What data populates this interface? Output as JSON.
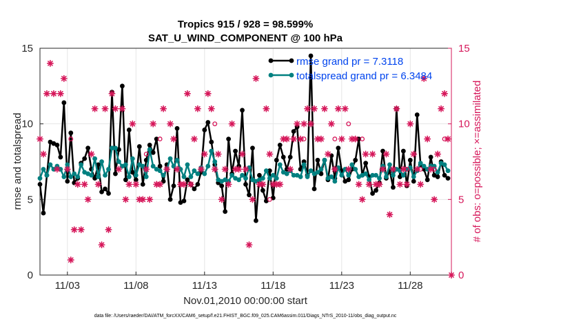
{
  "chart_data": {
    "type": "line",
    "title": "Tropics 915 / 928 = 98.599%",
    "subtitle": "SAT_U_WIND_COMPONENT @ 100 hPa",
    "xlabel": "Nov.01,2010 00:00:00 start",
    "ylabel": "rmse and totalspread",
    "ylabel_right": "# of obs: o=possible; ×=assimilated",
    "footer": "data file: /Users/raeder/DAI/ATM_forcXX/CAM6_setup/f.e21.FHIST_BGC.f09_025.CAM6assim.011/Diags_NTrS_2010-11/obs_diag_output.nc",
    "xlim": [
      1,
      31
    ],
    "ylim": [
      0,
      15
    ],
    "ylim_right": [
      0,
      15
    ],
    "grid": true,
    "x_ticks": [
      3,
      8,
      13,
      18,
      23,
      28
    ],
    "x_tick_labels": [
      "11/03",
      "11/08",
      "11/13",
      "11/18",
      "11/23",
      "11/28"
    ],
    "y_ticks": [
      0,
      5,
      10,
      15
    ],
    "y_tick_labels": [
      "0",
      "5",
      "10",
      "15"
    ],
    "y_ticks_right": [
      0,
      5,
      10,
      15
    ],
    "y_tick_labels_right": [
      "0",
      "5",
      "10",
      "15"
    ],
    "legend_position": "top-right",
    "colors": {
      "rmse": "#000000",
      "spread": "#008080",
      "obs": "#d6175a",
      "legend_text": "#0044ee",
      "right_axis": "#d6175a"
    },
    "series": [
      {
        "name": "rmse grand pr = 7.3118",
        "x": [
          1.0,
          1.25,
          1.5,
          1.75,
          2.0,
          2.25,
          2.5,
          2.75,
          3.0,
          3.25,
          3.5,
          3.75,
          4.0,
          4.25,
          4.5,
          4.75,
          5.0,
          5.25,
          5.5,
          5.75,
          6.0,
          6.25,
          6.5,
          6.75,
          7.0,
          7.25,
          7.5,
          7.75,
          8.0,
          8.25,
          8.5,
          8.75,
          9.0,
          9.25,
          9.5,
          9.75,
          10.0,
          10.25,
          10.5,
          10.75,
          11.0,
          11.25,
          11.5,
          11.75,
          12.0,
          12.25,
          12.5,
          12.75,
          13.0,
          13.25,
          13.5,
          13.75,
          14.0,
          14.25,
          14.5,
          14.75,
          15.0,
          15.25,
          15.5,
          15.75,
          16.0,
          16.25,
          16.5,
          16.75,
          17.0,
          17.25,
          17.5,
          17.75,
          18.0,
          18.25,
          18.5,
          18.75,
          19.0,
          19.25,
          19.5,
          19.75,
          20.0,
          20.25,
          20.5,
          20.75,
          21.0,
          21.25,
          21.5,
          21.75,
          22.0,
          22.25,
          22.5,
          22.75,
          23.0,
          23.25,
          23.5,
          23.75,
          24.0,
          24.25,
          24.5,
          24.75,
          25.0,
          25.25,
          25.5,
          25.75,
          26.0,
          26.25,
          26.5,
          26.75,
          27.0,
          27.25,
          27.5,
          27.75,
          28.0,
          28.25,
          28.5,
          28.75,
          29.0,
          29.25,
          29.5,
          29.75,
          30.0,
          30.25,
          30.5,
          30.75
        ],
        "values": [
          6.0,
          4.1,
          6.6,
          8.8,
          8.7,
          8.6,
          7.8,
          11.4,
          6.2,
          9.4,
          6.1,
          6.4,
          7.4,
          7.7,
          8.4,
          7.0,
          6.4,
          7.3,
          5.5,
          5.7,
          5.4,
          12.1,
          6.7,
          8.3,
          12.5,
          6.3,
          9.6,
          6.8,
          6.3,
          8.5,
          6.0,
          7.6,
          8.6,
          8.1,
          9.0,
          7.2,
          6.2,
          7.3,
          5.0,
          5.9,
          9.7,
          4.8,
          4.9,
          6.3,
          6.0,
          5.7,
          6.0,
          6.8,
          9.6,
          10.1,
          8.8,
          7.3,
          6.1,
          5.9,
          4.2,
          9.0,
          6.7,
          8.2,
          7.2,
          10.9,
          6.0,
          5.3,
          8.4,
          3.6,
          6.6,
          5.6,
          4.9,
          6.9,
          5.1,
          7.6,
          8.6,
          7.8,
          7.0,
          7.8,
          9.5,
          9.8,
          7.0,
          7.5,
          6.6,
          14.5,
          5.7,
          7.6,
          6.7,
          7.6,
          6.3,
          7.9,
          6.4,
          8.4,
          6.9,
          6.2,
          6.3,
          7.0,
          7.6,
          9.0,
          6.6,
          7.4,
          6.5,
          5.4,
          5.6,
          6.1,
          8.2,
          6.4,
          6.9,
          5.8,
          11.0,
          6.5,
          8.2,
          5.9,
          7.6,
          6.2,
          10.6,
          7.3,
          7.0,
          6.3,
          7.8,
          6.6,
          6.5,
          7.5,
          6.6,
          6.4
        ]
      },
      {
        "name": "totalspread grand pr = 6.3484",
        "x": [
          1.0,
          1.25,
          1.5,
          1.75,
          2.0,
          2.25,
          2.5,
          2.75,
          3.0,
          3.25,
          3.5,
          3.75,
          4.0,
          4.25,
          4.5,
          4.75,
          5.0,
          5.25,
          5.5,
          5.75,
          6.0,
          6.25,
          6.5,
          6.75,
          7.0,
          7.25,
          7.5,
          7.75,
          8.0,
          8.25,
          8.5,
          8.75,
          9.0,
          9.25,
          9.5,
          9.75,
          10.0,
          10.25,
          10.5,
          10.75,
          11.0,
          11.25,
          11.5,
          11.75,
          12.0,
          12.25,
          12.5,
          12.75,
          13.0,
          13.25,
          13.5,
          13.75,
          14.0,
          14.25,
          14.5,
          14.75,
          15.0,
          15.25,
          15.5,
          15.75,
          16.0,
          16.25,
          16.5,
          16.75,
          17.0,
          17.25,
          17.5,
          17.75,
          18.0,
          18.25,
          18.5,
          18.75,
          19.0,
          19.25,
          19.5,
          19.75,
          20.0,
          20.25,
          20.5,
          20.75,
          21.0,
          21.25,
          21.5,
          21.75,
          22.0,
          22.25,
          22.5,
          22.75,
          23.0,
          23.25,
          23.5,
          23.75,
          24.0,
          24.25,
          24.5,
          24.75,
          25.0,
          25.25,
          25.5,
          25.75,
          26.0,
          26.25,
          26.5,
          26.75,
          27.0,
          27.25,
          27.5,
          27.75,
          28.0,
          28.25,
          28.5,
          28.75,
          29.0,
          29.25,
          29.5,
          29.75,
          30.0,
          30.25,
          30.5,
          30.75
        ],
        "values": [
          6.4,
          7.0,
          6.6,
          7.3,
          7.0,
          7.2,
          7.0,
          6.5,
          7.3,
          6.5,
          6.7,
          6.5,
          7.3,
          6.8,
          6.7,
          6.6,
          7.7,
          6.5,
          7.5,
          6.6,
          7.0,
          8.4,
          8.4,
          7.5,
          7.2,
          7.3,
          6.5,
          7.7,
          6.6,
          7.3,
          7.2,
          6.5,
          8.3,
          7.2,
          7.0,
          6.9,
          6.6,
          7.0,
          7.7,
          7.2,
          7.6,
          7.0,
          6.5,
          7.3,
          6.5,
          6.9,
          6.7,
          7.1,
          6.7,
          7.2,
          8.2,
          7.5,
          6.3,
          6.2,
          6.3,
          6.2,
          6.6,
          6.4,
          6.3,
          6.6,
          6.4,
          7.1,
          6.3,
          6.2,
          6.3,
          6.4,
          6.9,
          6.4,
          6.6,
          6.4,
          7.3,
          6.8,
          6.7,
          6.9,
          6.6,
          6.6,
          6.5,
          7.3,
          6.5,
          6.9,
          6.7,
          6.8,
          7.0,
          7.6,
          6.4,
          6.5,
          6.2,
          7.1,
          6.6,
          7.0,
          6.6,
          7.3,
          7.0,
          6.5,
          6.6,
          6.7,
          6.3,
          6.6,
          6.6,
          6.4,
          7.2,
          6.5,
          7.3,
          6.6,
          7.0,
          6.9,
          6.6,
          7.0,
          7.1,
          6.5,
          6.9,
          7.4,
          7.2,
          7.0,
          7.2,
          7.2,
          6.8,
          7.4,
          7.3,
          6.9
        ]
      }
    ],
    "obs_assimilated": {
      "x": [
        1.0,
        1.25,
        1.5,
        1.75,
        2.0,
        2.25,
        2.5,
        2.75,
        3.0,
        3.25,
        3.5,
        3.75,
        4.0,
        4.25,
        4.5,
        4.75,
        5.0,
        5.25,
        5.5,
        5.75,
        6.0,
        6.25,
        6.5,
        6.75,
        7.0,
        7.25,
        7.5,
        7.75,
        8.0,
        8.25,
        8.5,
        8.75,
        9.0,
        9.25,
        9.5,
        9.75,
        10.0,
        10.25,
        10.5,
        10.75,
        11.0,
        11.25,
        11.5,
        11.75,
        12.0,
        12.25,
        12.5,
        12.75,
        13.0,
        13.25,
        13.5,
        13.75,
        14.0,
        14.25,
        14.5,
        14.75,
        15.0,
        15.25,
        15.5,
        15.75,
        16.0,
        16.25,
        16.5,
        16.75,
        17.0,
        17.25,
        17.5,
        17.75,
        18.0,
        18.25,
        18.5,
        18.75,
        19.0,
        19.25,
        19.5,
        19.75,
        20.0,
        20.25,
        20.5,
        20.75,
        21.0,
        21.25,
        21.5,
        21.75,
        22.0,
        22.25,
        22.5,
        22.75,
        23.0,
        23.25,
        23.5,
        23.75,
        24.0,
        24.25,
        24.5,
        24.75,
        25.0,
        25.25,
        25.5,
        25.75,
        26.0,
        26.25,
        26.5,
        26.75,
        27.0,
        27.25,
        27.5,
        27.75,
        28.0,
        28.25,
        28.5,
        28.75,
        29.0,
        29.25,
        29.5,
        29.75,
        30.0,
        30.25,
        30.5,
        30.75,
        31.0
      ],
      "values": [
        9,
        8,
        12,
        14,
        12,
        7,
        12,
        13,
        7,
        1,
        3,
        6,
        3,
        6,
        5,
        8,
        11,
        6,
        2,
        11,
        3,
        12,
        11,
        7,
        11,
        5,
        6,
        10,
        6,
        5,
        5,
        7,
        5,
        10,
        6,
        6,
        11,
        7,
        10,
        9,
        7,
        6,
        6,
        12,
        6,
        9,
        11,
        7,
        8,
        12,
        11,
        7,
        8,
        5,
        7,
        6,
        10,
        7,
        7,
        8,
        7,
        2,
        5,
        13,
        6,
        6,
        11,
        8,
        6,
        6,
        6,
        9,
        9,
        7,
        9,
        10,
        9,
        10,
        11,
        10,
        11,
        9,
        9,
        11,
        8,
        10,
        7,
        11,
        9,
        11,
        7,
        9,
        9,
        6,
        5,
        8,
        6,
        8,
        6,
        6,
        7,
        8,
        4,
        7,
        11,
        6,
        7,
        6,
        10,
        8,
        7,
        6,
        13,
        9,
        7,
        5,
        8,
        11,
        12,
        9,
        0
      ]
    },
    "obs_possible": {
      "x": [
        3.25,
        8.75,
        9.75,
        13.75,
        17.75,
        20.25,
        22.5,
        23.5,
        24.5,
        27.75,
        28.75,
        29.75,
        30.5
      ],
      "values": [
        9,
        8,
        9,
        10,
        5,
        9,
        9,
        10,
        9,
        7,
        7,
        7,
        9
      ]
    }
  }
}
